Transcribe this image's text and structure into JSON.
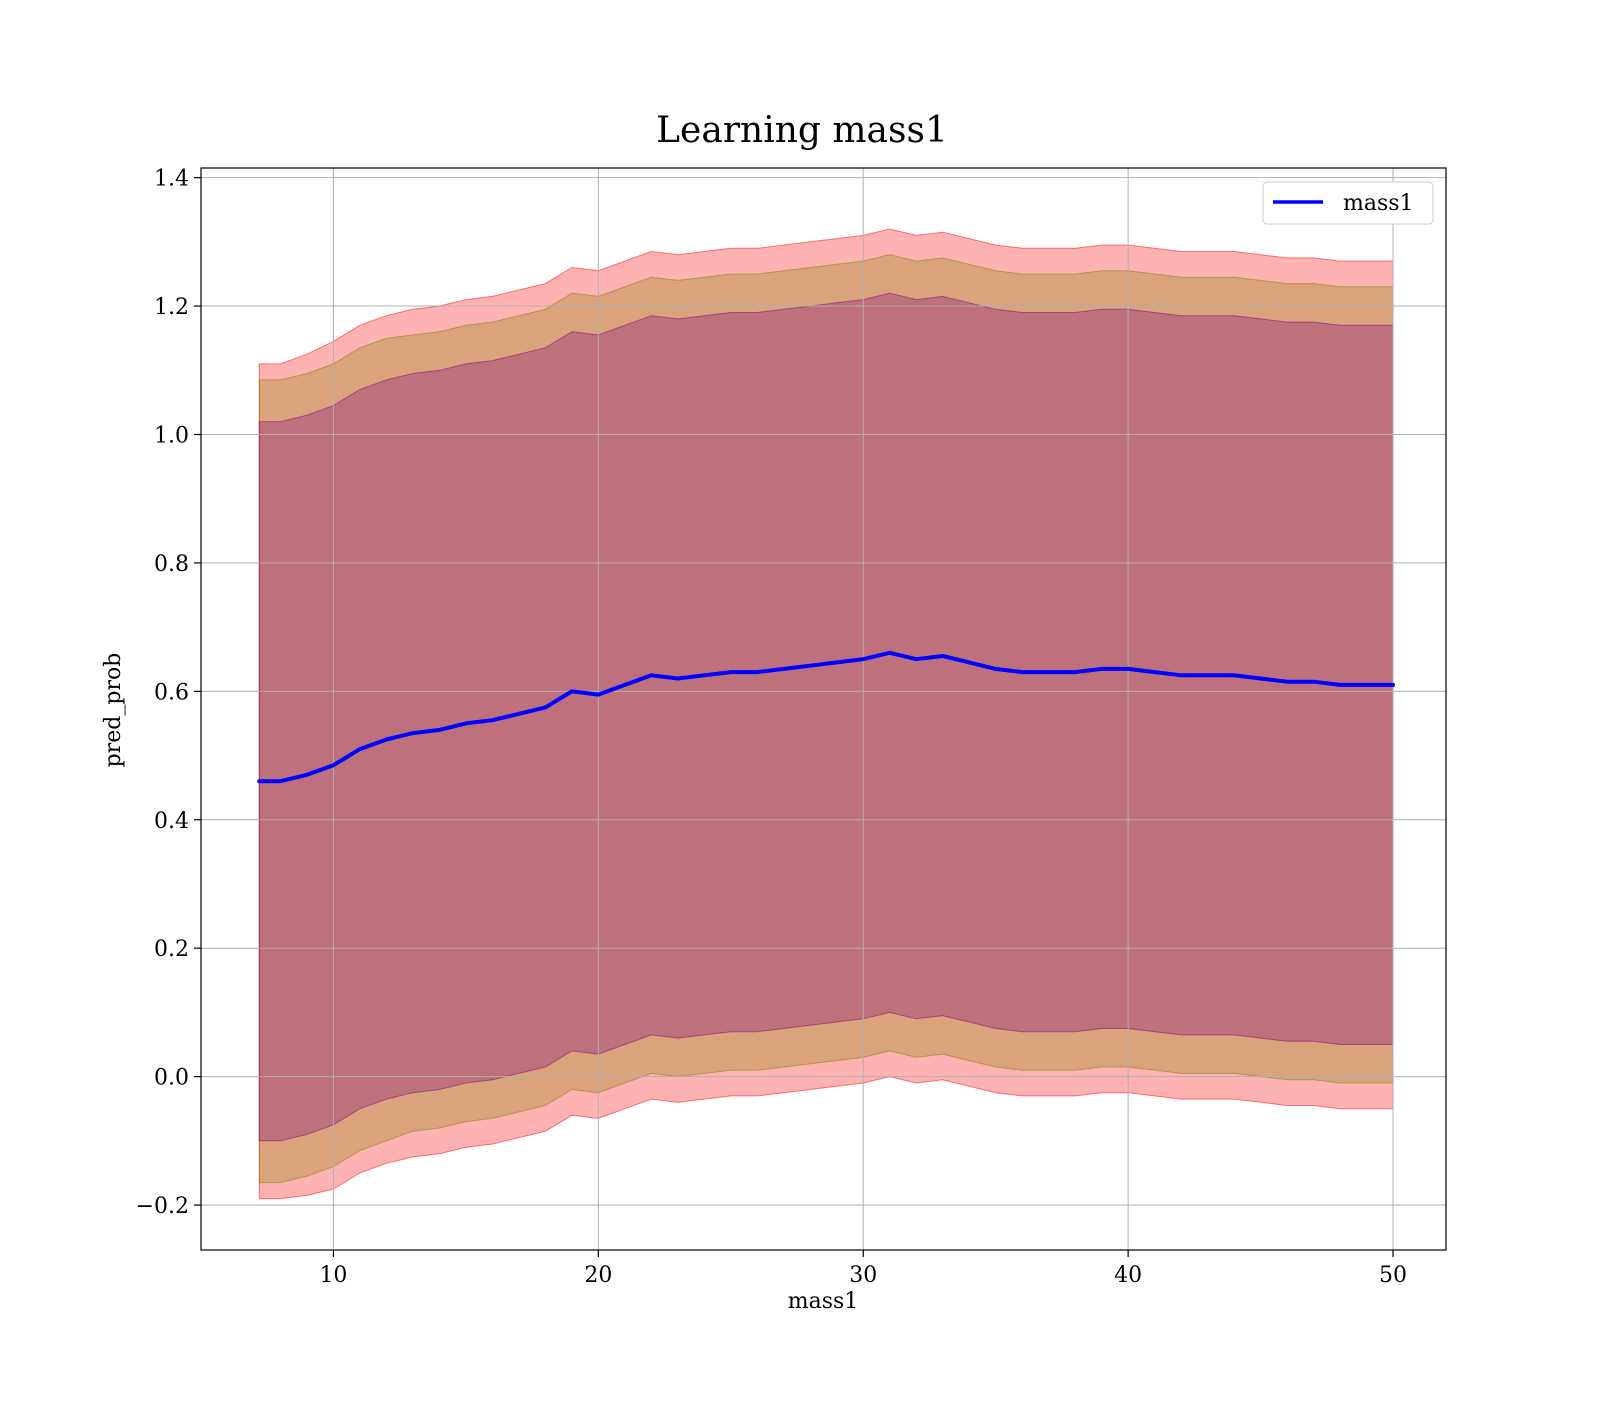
{
  "chart_data": {
    "type": "line",
    "title": "Learning mass1",
    "xlabel": "mass1",
    "ylabel": "pred_prob",
    "xlim": [
      5,
      52
    ],
    "ylim": [
      -0.27,
      1.415
    ],
    "xticks": [
      10,
      20,
      30,
      40,
      50
    ],
    "yticks": [
      -0.2,
      0.0,
      0.2,
      0.4,
      0.6,
      0.8,
      1.0,
      1.2,
      1.4
    ],
    "grid": true,
    "legend": {
      "position": "top-right",
      "entries": [
        "mass1"
      ]
    },
    "series": [
      {
        "name": "mass1",
        "color": "#0000ff",
        "x": [
          7.2,
          8,
          9,
          10,
          11,
          12,
          13,
          14,
          15,
          16,
          17,
          18,
          19,
          20,
          21,
          22,
          23,
          24,
          25,
          26,
          27,
          28,
          29,
          30,
          31,
          32,
          33,
          34,
          35,
          36,
          37,
          38,
          39,
          40,
          41,
          42,
          43,
          44,
          45,
          46,
          47,
          48,
          49,
          50
        ],
        "y": [
          0.46,
          0.46,
          0.47,
          0.485,
          0.51,
          0.525,
          0.535,
          0.54,
          0.55,
          0.555,
          0.565,
          0.575,
          0.6,
          0.595,
          0.61,
          0.625,
          0.62,
          0.625,
          0.63,
          0.63,
          0.635,
          0.64,
          0.645,
          0.65,
          0.66,
          0.65,
          0.655,
          0.645,
          0.635,
          0.63,
          0.63,
          0.63,
          0.635,
          0.635,
          0.63,
          0.625,
          0.625,
          0.625,
          0.62,
          0.615,
          0.615,
          0.61,
          0.61,
          0.61
        ]
      }
    ],
    "bands": [
      {
        "color": "#ff0000",
        "opacity": 0.3,
        "half_width": [
          0.65,
          0.65,
          0.655,
          0.66,
          0.66,
          0.66,
          0.66,
          0.66,
          0.66,
          0.66,
          0.66,
          0.66,
          0.66,
          0.66,
          0.66,
          0.66,
          0.66,
          0.66,
          0.66,
          0.66,
          0.66,
          0.66,
          0.66,
          0.66,
          0.66,
          0.66,
          0.66,
          0.66,
          0.66,
          0.66,
          0.66,
          0.66,
          0.66,
          0.66,
          0.66,
          0.66,
          0.66,
          0.66,
          0.66,
          0.66,
          0.66,
          0.66,
          0.66,
          0.66
        ]
      },
      {
        "color": "#808000",
        "opacity": 0.3,
        "half_width": [
          0.625,
          0.625,
          0.625,
          0.625,
          0.625,
          0.625,
          0.62,
          0.62,
          0.62,
          0.62,
          0.62,
          0.62,
          0.62,
          0.62,
          0.62,
          0.62,
          0.62,
          0.62,
          0.62,
          0.62,
          0.62,
          0.62,
          0.62,
          0.62,
          0.62,
          0.62,
          0.62,
          0.62,
          0.62,
          0.62,
          0.62,
          0.62,
          0.62,
          0.62,
          0.62,
          0.62,
          0.62,
          0.62,
          0.62,
          0.62,
          0.62,
          0.62,
          0.62,
          0.62
        ]
      },
      {
        "color": "#800080",
        "opacity": 0.3,
        "half_width": [
          0.56,
          0.56,
          0.56,
          0.56,
          0.56,
          0.56,
          0.56,
          0.56,
          0.56,
          0.56,
          0.56,
          0.56,
          0.56,
          0.56,
          0.56,
          0.56,
          0.56,
          0.56,
          0.56,
          0.56,
          0.56,
          0.56,
          0.56,
          0.56,
          0.56,
          0.56,
          0.56,
          0.56,
          0.56,
          0.56,
          0.56,
          0.56,
          0.56,
          0.56,
          0.56,
          0.56,
          0.56,
          0.56,
          0.56,
          0.56,
          0.56,
          0.56,
          0.56,
          0.56
        ]
      }
    ]
  }
}
